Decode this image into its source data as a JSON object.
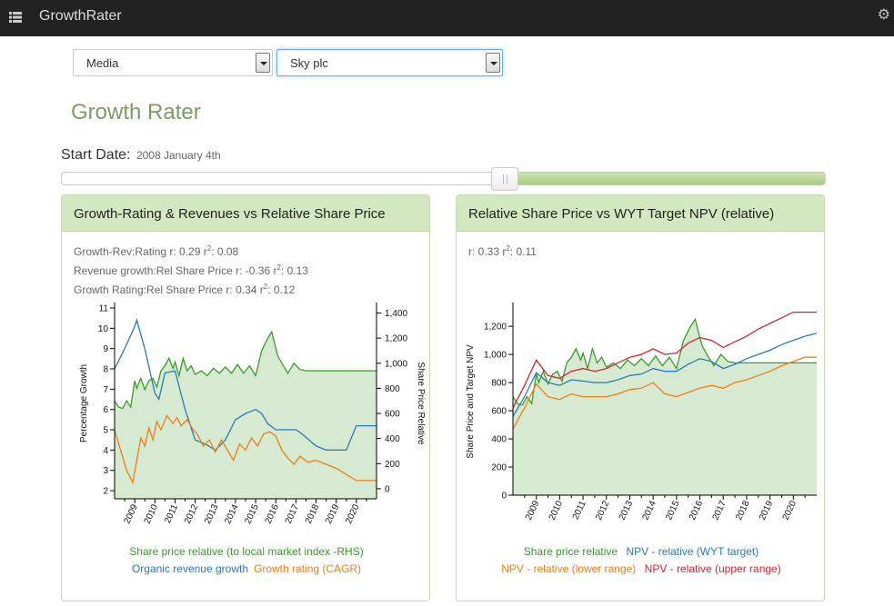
{
  "app": {
    "title": "GrowthRater"
  },
  "header": {
    "menu_icon": "list-icon",
    "settings_icon": "gear-icon"
  },
  "filters": {
    "sector": "Media",
    "company": "Sky plc"
  },
  "page_title": "Growth Rater",
  "start_date": {
    "label": "Start Date:",
    "value": "2008 January 4th",
    "slider_position": 0.58
  },
  "colors": {
    "green": "#3a9a2a",
    "green_fill": "#d5ead1",
    "blue": "#2a7ab5",
    "orange": "#f07d14",
    "red": "#d22630",
    "accent": "#7e9a63"
  },
  "left_panel": {
    "title": "Growth-Rating & Revenues vs Relative Share Price",
    "stats": [
      {
        "label": "Growth-Rev:Rating r: ",
        "r": "0.29",
        "r2": "0.08"
      },
      {
        "label": "Revenue growth:Rel Share Price r: ",
        "r": "-0.36",
        "r2": "0.13"
      },
      {
        "label": "Growth Rating:Rel Share Price r: ",
        "r": "0.34",
        "r2": "0.12"
      }
    ],
    "legend": {
      "share_price": "Share price relative (to local market index -RHS)",
      "revenue": "Organic revenue growth",
      "growth_rating": "Growth rating (CAGR)"
    }
  },
  "right_panel": {
    "title": "Relative Share Price vs WYT Target NPV (relative)",
    "stats": {
      "r": "0.33",
      "r2": "0.11"
    },
    "legend": {
      "share_price": "Share price relative",
      "npv_target": "NPV - relative (WYT target)",
      "npv_lower": "NPV - relative (lower range)",
      "npv_upper": "NPV - relative (upper range)"
    }
  },
  "chart_data": [
    {
      "type": "line",
      "ylabel": "Percentage Growth",
      "y2label": "Share Price Relative",
      "x_ticks": [
        "2009",
        "2010",
        "2011",
        "2012",
        "2013",
        "2014",
        "2015",
        "2016",
        "2017",
        "2018",
        "2019",
        "2020"
      ],
      "xlim": [
        2008.0,
        2021.0
      ],
      "ylim": [
        1.6,
        11.0
      ],
      "y_ticks": [
        2,
        3,
        4,
        5,
        6,
        7,
        8,
        9,
        10,
        11
      ],
      "y2lim": [
        -80,
        1440
      ],
      "y2_ticks": [
        "0",
        "200",
        "400",
        "600",
        "800",
        "1,000",
        "1,200",
        "1,400"
      ],
      "series": [
        {
          "name": "Share price relative (to local market index -RHS)",
          "axis": "right",
          "fill": true,
          "x": [
            2008.0,
            2008.2,
            2008.4,
            2008.6,
            2008.8,
            2009.0,
            2009.1,
            2009.3,
            2009.5,
            2009.7,
            2009.9,
            2010.1,
            2010.3,
            2010.5,
            2010.7,
            2010.9,
            2011.0,
            2011.2,
            2011.4,
            2011.6,
            2011.8,
            2012.0,
            2012.3,
            2012.6,
            2012.9,
            2013.2,
            2013.5,
            2013.8,
            2014.1,
            2014.4,
            2014.7,
            2015.0,
            2015.3,
            2015.6,
            2015.8,
            2016.0,
            2016.1,
            2016.3,
            2016.6,
            2016.9,
            2017.2,
            2017.5,
            2018.0,
            2019.0,
            2020.0,
            2021.0
          ],
          "y": [
            700,
            650,
            640,
            700,
            650,
            860,
            800,
            880,
            790,
            860,
            880,
            810,
            940,
            980,
            1040,
            960,
            1010,
            900,
            1040,
            940,
            980,
            910,
            940,
            900,
            960,
            920,
            970,
            920,
            990,
            920,
            980,
            900,
            1100,
            1200,
            1250,
            1120,
            1060,
            1000,
            920,
            1000,
            950,
            940,
            940,
            940,
            940,
            940
          ]
        },
        {
          "name": "Organic revenue growth",
          "axis": "left",
          "x": [
            2008.0,
            2008.5,
            2009.0,
            2009.1,
            2009.5,
            2010.0,
            2010.2,
            2010.5,
            2011.0,
            2011.5,
            2012.0,
            2012.5,
            2013.0,
            2013.5,
            2014.0,
            2014.5,
            2015.0,
            2015.3,
            2015.6,
            2016.0,
            2016.5,
            2017.0,
            2017.3,
            2018.0,
            2018.5,
            2019.0,
            2019.5,
            2020.0,
            2021.0
          ],
          "y": [
            8.0,
            9.0,
            10.1,
            10.4,
            9.0,
            6.8,
            6.5,
            7.8,
            7.9,
            6.0,
            4.5,
            4.3,
            4.0,
            4.5,
            5.5,
            5.8,
            6.0,
            5.8,
            5.3,
            5.0,
            5.0,
            5.0,
            4.8,
            4.2,
            4.0,
            4.0,
            4.0,
            5.2,
            5.2
          ]
        },
        {
          "name": "Growth rating (CAGR)",
          "axis": "left",
          "x": [
            2008.0,
            2008.3,
            2008.6,
            2008.9,
            2009.1,
            2009.3,
            2009.5,
            2009.7,
            2009.9,
            2010.1,
            2010.3,
            2010.6,
            2010.9,
            2011.1,
            2011.3,
            2011.6,
            2011.9,
            2012.1,
            2012.4,
            2012.7,
            2013.0,
            2013.3,
            2013.6,
            2013.9,
            2014.2,
            2014.5,
            2014.8,
            2015.1,
            2015.4,
            2015.7,
            2016.0,
            2016.3,
            2016.6,
            2016.9,
            2017.2,
            2017.6,
            2018.0,
            2018.5,
            2019.0,
            2019.5,
            2020.0,
            2020.5,
            2021.0
          ],
          "y": [
            5.0,
            4.0,
            3.0,
            2.4,
            3.5,
            4.6,
            4.2,
            5.1,
            4.5,
            5.4,
            5.0,
            5.7,
            5.3,
            5.6,
            5.2,
            5.5,
            5.0,
            4.8,
            4.2,
            4.5,
            3.9,
            4.5,
            4.0,
            3.5,
            4.3,
            4.0,
            4.6,
            4.2,
            4.8,
            4.9,
            4.7,
            4.0,
            3.6,
            3.3,
            3.7,
            3.4,
            3.5,
            3.3,
            3.1,
            2.8,
            2.5,
            2.5,
            2.5
          ]
        }
      ]
    },
    {
      "type": "line",
      "ylabel": "Share Price and Target NPV",
      "x_ticks": [
        "2009",
        "2010",
        "2011",
        "2012",
        "2013",
        "2014",
        "2015",
        "2016",
        "2017",
        "2018",
        "2019",
        "2020"
      ],
      "xlim": [
        2008.0,
        2021.0
      ],
      "ylim": [
        0,
        1330
      ],
      "y_ticks": [
        0,
        200,
        400,
        600,
        800,
        1000,
        1200
      ],
      "y_tick_labels": [
        "0",
        "200",
        "400",
        "600",
        "800",
        "1,000",
        "1,200"
      ],
      "series": [
        {
          "name": "Share price relative",
          "fill": true,
          "x": [
            2008.0,
            2008.2,
            2008.4,
            2008.6,
            2008.8,
            2009.0,
            2009.1,
            2009.3,
            2009.5,
            2009.7,
            2009.9,
            2010.1,
            2010.3,
            2010.5,
            2010.7,
            2010.9,
            2011.0,
            2011.2,
            2011.4,
            2011.6,
            2011.8,
            2012.0,
            2012.3,
            2012.6,
            2012.9,
            2013.2,
            2013.5,
            2013.8,
            2014.1,
            2014.4,
            2014.7,
            2015.0,
            2015.3,
            2015.6,
            2015.8,
            2016.0,
            2016.1,
            2016.3,
            2016.6,
            2016.9,
            2017.2,
            2017.5,
            2018.0,
            2019.0,
            2020.0,
            2021.0
          ],
          "y": [
            700,
            650,
            640,
            700,
            650,
            860,
            800,
            880,
            790,
            860,
            880,
            810,
            940,
            980,
            1040,
            960,
            1010,
            900,
            1040,
            940,
            980,
            910,
            940,
            900,
            960,
            920,
            970,
            920,
            990,
            920,
            980,
            900,
            1100,
            1200,
            1250,
            1120,
            1060,
            1000,
            920,
            1000,
            950,
            940,
            940,
            940,
            940,
            940
          ]
        },
        {
          "name": "NPV - relative (WYT target)",
          "x": [
            2008.0,
            2008.5,
            2009.0,
            2009.5,
            2010.0,
            2010.5,
            2011.0,
            2011.5,
            2012.0,
            2012.5,
            2013.0,
            2013.5,
            2014.0,
            2014.5,
            2015.0,
            2015.5,
            2016.0,
            2016.5,
            2017.0,
            2017.5,
            2018.0,
            2018.5,
            2019.0,
            2019.5,
            2020.0,
            2020.5,
            2021.0
          ],
          "y": [
            560,
            700,
            870,
            800,
            780,
            820,
            810,
            800,
            800,
            820,
            850,
            860,
            900,
            880,
            880,
            930,
            970,
            950,
            900,
            930,
            970,
            1000,
            1030,
            1070,
            1100,
            1130,
            1150
          ]
        },
        {
          "name": "NPV - relative (lower range)",
          "x": [
            2008.0,
            2008.5,
            2009.0,
            2009.5,
            2010.0,
            2010.5,
            2011.0,
            2011.5,
            2012.0,
            2012.5,
            2013.0,
            2013.5,
            2014.0,
            2014.5,
            2015.0,
            2015.5,
            2016.0,
            2016.5,
            2017.0,
            2017.5,
            2018.0,
            2018.5,
            2019.0,
            2019.5,
            2020.0,
            2020.5,
            2021.0
          ],
          "y": [
            470,
            620,
            790,
            700,
            680,
            720,
            700,
            700,
            700,
            720,
            750,
            760,
            800,
            720,
            700,
            730,
            760,
            780,
            760,
            800,
            820,
            850,
            880,
            920,
            950,
            980,
            980
          ]
        },
        {
          "name": "NPV - relative (upper range)",
          "x": [
            2008.0,
            2008.5,
            2009.0,
            2009.5,
            2010.0,
            2010.5,
            2011.0,
            2011.5,
            2012.0,
            2012.5,
            2013.0,
            2013.5,
            2014.0,
            2014.5,
            2015.0,
            2015.5,
            2016.0,
            2016.5,
            2017.0,
            2017.5,
            2018.0,
            2018.5,
            2019.0,
            2019.5,
            2020.0,
            2020.5,
            2021.0
          ],
          "y": [
            620,
            780,
            960,
            850,
            830,
            880,
            900,
            880,
            900,
            940,
            980,
            1000,
            1040,
            1000,
            1010,
            1080,
            1120,
            1100,
            1050,
            1090,
            1130,
            1180,
            1220,
            1260,
            1300,
            1300,
            1300
          ]
        }
      ]
    }
  ]
}
